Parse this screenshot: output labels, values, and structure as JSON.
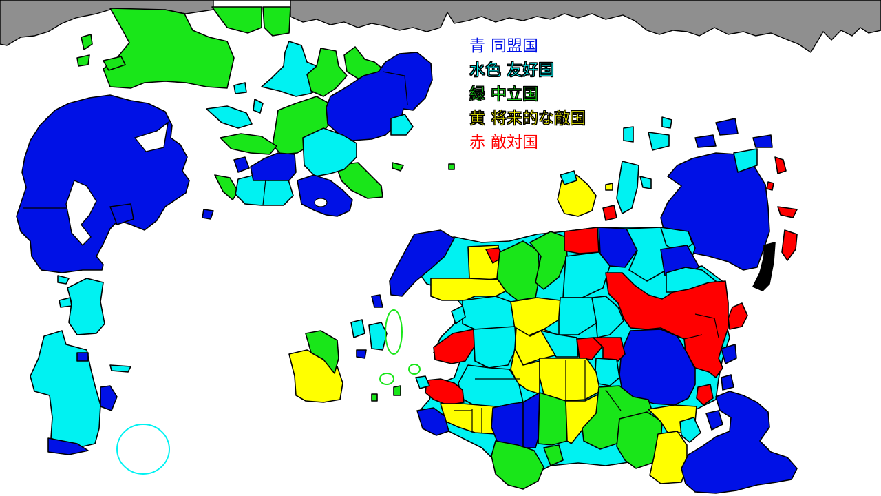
{
  "colors": {
    "ocean": "#ffffff",
    "ice": "#8f8f8f",
    "blue": "#0011e6",
    "cyan": "#00f2f2",
    "green": "#19e619",
    "yellow": "#ffff00",
    "red": "#ff0000",
    "black": "#000000"
  },
  "legend": [
    {
      "key": "青",
      "label": "同盟国",
      "color": "#0011e6",
      "outlined": false
    },
    {
      "key": "水色",
      "label": "友好国",
      "color": "#00f2f2",
      "outlined": true
    },
    {
      "key": "緑",
      "label": "中立国",
      "color": "#19e619",
      "outlined": true
    },
    {
      "key": "黄",
      "label": "将来的な敵国",
      "color": "#ffff00",
      "outlined": true
    },
    {
      "key": "赤",
      "label": "敵対国",
      "color": "#ff0000",
      "outlined": false
    }
  ]
}
